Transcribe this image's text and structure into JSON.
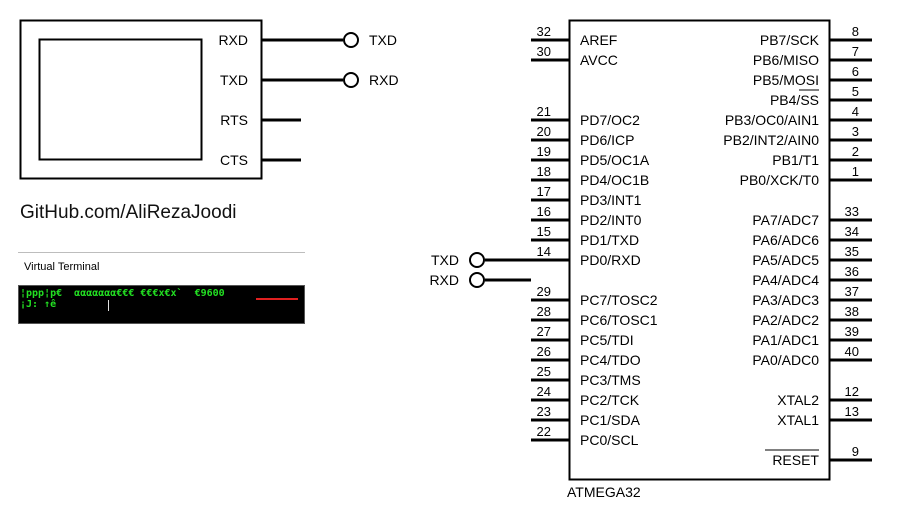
{
  "terminal": {
    "pins": [
      "RXD",
      "TXD",
      "RTS",
      "CTS"
    ],
    "connectors": [
      "TXD",
      "RXD"
    ]
  },
  "watermark": "GitHub.com/AliRezaJoodi",
  "virtual_terminal": {
    "title": "Virtual Terminal",
    "line1": "¦ppp¦p€  ααααααα€€€ €€€x€x`  €9600",
    "line2": "¡J: ↑ê"
  },
  "mcu": {
    "name": "ATMEGA32",
    "left_pins": [
      {
        "num": "32",
        "label": "AREF"
      },
      {
        "num": "30",
        "label": "AVCC"
      },
      {
        "num": "21",
        "label": "PD7/OC2"
      },
      {
        "num": "20",
        "label": "PD6/ICP"
      },
      {
        "num": "19",
        "label": "PD5/OC1A"
      },
      {
        "num": "18",
        "label": "PD4/OC1B"
      },
      {
        "num": "17",
        "label": "PD3/INT1"
      },
      {
        "num": "16",
        "label": "PD2/INT0"
      },
      {
        "num": "15",
        "label": "PD1/TXD"
      },
      {
        "num": "14",
        "label": "PD0/RXD"
      },
      {
        "num": "29",
        "label": "PC7/TOSC2"
      },
      {
        "num": "28",
        "label": "PC6/TOSC1"
      },
      {
        "num": "27",
        "label": "PC5/TDI"
      },
      {
        "num": "26",
        "label": "PC4/TDO"
      },
      {
        "num": "25",
        "label": "PC3/TMS"
      },
      {
        "num": "24",
        "label": "PC2/TCK"
      },
      {
        "num": "23",
        "label": "PC1/SDA"
      },
      {
        "num": "22",
        "label": "PC0/SCL"
      }
    ],
    "right_pins": [
      {
        "num": "8",
        "label": "PB7/SCK"
      },
      {
        "num": "7",
        "label": "PB6/MISO"
      },
      {
        "num": "6",
        "label": "PB5/MOSI"
      },
      {
        "num": "5",
        "label": "PB4/SS"
      },
      {
        "num": "4",
        "label": "PB3/OC0/AIN1"
      },
      {
        "num": "3",
        "label": "PB2/INT2/AIN0"
      },
      {
        "num": "2",
        "label": "PB1/T1"
      },
      {
        "num": "1",
        "label": "PB0/XCK/T0"
      },
      {
        "num": "33",
        "label": "PA7/ADC7"
      },
      {
        "num": "34",
        "label": "PA6/ADC6"
      },
      {
        "num": "35",
        "label": "PA5/ADC5"
      },
      {
        "num": "36",
        "label": "PA4/ADC4"
      },
      {
        "num": "37",
        "label": "PA3/ADC3"
      },
      {
        "num": "38",
        "label": "PA2/ADC2"
      },
      {
        "num": "39",
        "label": "PA1/ADC1"
      },
      {
        "num": "40",
        "label": "PA0/ADC0"
      },
      {
        "num": "12",
        "label": "XTAL2"
      },
      {
        "num": "13",
        "label": "XTAL1"
      },
      {
        "num": "9",
        "label": "RESET"
      }
    ],
    "connectors": [
      "TXD",
      "RXD"
    ]
  }
}
